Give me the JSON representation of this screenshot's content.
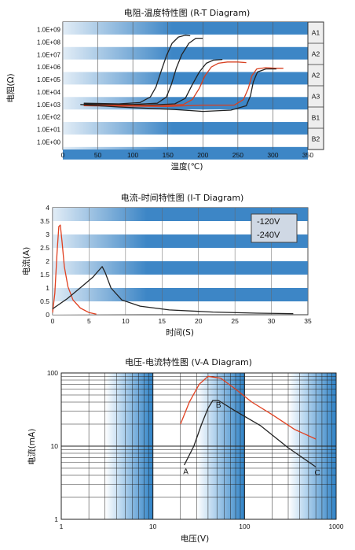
{
  "chart_data": [
    {
      "type": "line",
      "title": "电阻-温度特性图 (R-T Diagram)",
      "xlabel": "温度(℃)",
      "ylabel": "电阻(Ω)",
      "xlim": [
        0,
        350
      ],
      "x_ticks": [
        "0",
        "50",
        "100",
        "150",
        "200",
        "250",
        "300",
        "350"
      ],
      "y_ticks": [
        "1.0E+00",
        "1.0E+01",
        "1.0E+02",
        "1.0E+03",
        "1.0E+04",
        "1.0E+05",
        "1.0E+06",
        "1.0E+07",
        "1.0E+08",
        "1.0E+09"
      ],
      "y_log10_range": [
        0,
        9
      ],
      "side_labels": [
        "A1",
        "A2",
        "A2",
        "A3",
        "B1",
        "B2"
      ],
      "series": [
        {
          "color": "#222222",
          "points": [
            [
              30,
              3.1
            ],
            [
              80,
              3.05
            ],
            [
              110,
              3.15
            ],
            [
              125,
              3.6
            ],
            [
              133,
              4.4
            ],
            [
              140,
              5.6
            ],
            [
              148,
              6.9
            ],
            [
              156,
              7.9
            ],
            [
              165,
              8.4
            ],
            [
              175,
              8.55
            ],
            [
              182,
              8.5
            ]
          ]
        },
        {
          "color": "#222222",
          "points": [
            [
              30,
              3.05
            ],
            [
              100,
              3.0
            ],
            [
              135,
              3.1
            ],
            [
              148,
              3.6
            ],
            [
              155,
              4.6
            ],
            [
              162,
              5.9
            ],
            [
              170,
              7.0
            ],
            [
              180,
              7.9
            ],
            [
              190,
              8.3
            ],
            [
              200,
              8.3
            ]
          ]
        },
        {
          "color": "#222222",
          "points": [
            [
              30,
              3.0
            ],
            [
              120,
              2.95
            ],
            [
              160,
              3.05
            ],
            [
              175,
              3.5
            ],
            [
              185,
              4.6
            ],
            [
              195,
              5.6
            ],
            [
              205,
              6.3
            ],
            [
              215,
              6.55
            ],
            [
              228,
              6.6
            ]
          ]
        },
        {
          "color": "#d84020",
          "points": [
            [
              30,
              2.95
            ],
            [
              140,
              2.9
            ],
            [
              172,
              3.0
            ],
            [
              185,
              3.4
            ],
            [
              195,
              4.3
            ],
            [
              203,
              5.3
            ],
            [
              212,
              6.0
            ],
            [
              222,
              6.3
            ],
            [
              235,
              6.4
            ],
            [
              250,
              6.4
            ],
            [
              262,
              6.35
            ]
          ]
        },
        {
          "color": "#d84020",
          "points": [
            [
              30,
              2.9
            ],
            [
              150,
              2.85
            ],
            [
              200,
              2.95
            ],
            [
              215,
              2.95
            ],
            [
              245,
              2.95
            ],
            [
              258,
              3.4
            ],
            [
              265,
              4.3
            ],
            [
              270,
              5.3
            ],
            [
              277,
              5.85
            ],
            [
              290,
              5.95
            ],
            [
              305,
              5.9
            ],
            [
              315,
              5.9
            ]
          ]
        },
        {
          "color": "#222222",
          "points": [
            [
              25,
              3.0
            ],
            [
              80,
              2.8
            ],
            [
              160,
              2.6
            ],
            [
              200,
              2.45
            ],
            [
              240,
              2.55
            ],
            [
              262,
              2.9
            ],
            [
              268,
              3.7
            ],
            [
              272,
              4.8
            ],
            [
              278,
              5.6
            ],
            [
              290,
              5.85
            ],
            [
              305,
              5.85
            ]
          ]
        }
      ]
    },
    {
      "type": "line",
      "title": "电流-时间特性图 (I-T Diagram)",
      "xlabel": "时间(S)",
      "ylabel": "电流(A)",
      "xlim": [
        0,
        35
      ],
      "ylim": [
        0,
        4
      ],
      "x_ticks": [
        "0",
        "5",
        "10",
        "15",
        "20",
        "25",
        "30",
        "35"
      ],
      "y_ticks": [
        "0",
        "0.5",
        "1",
        "1.5",
        "2",
        "2.5",
        "3",
        "3.5",
        "4"
      ],
      "legend": [
        "-120V",
        "-240V"
      ],
      "series": [
        {
          "name": "-120V",
          "color": "#e04020",
          "points": [
            [
              0,
              0.08
            ],
            [
              0.3,
              0.8
            ],
            [
              0.6,
              2.3
            ],
            [
              0.85,
              3.3
            ],
            [
              1.05,
              3.35
            ],
            [
              1.3,
              2.7
            ],
            [
              1.6,
              1.8
            ],
            [
              2.1,
              1.05
            ],
            [
              2.8,
              0.55
            ],
            [
              3.8,
              0.25
            ],
            [
              5,
              0.08
            ],
            [
              6,
              0.02
            ]
          ]
        },
        {
          "name": "-240V",
          "color": "#222222",
          "points": [
            [
              0,
              0.22
            ],
            [
              2,
              0.6
            ],
            [
              4,
              1.05
            ],
            [
              5.5,
              1.4
            ],
            [
              6.8,
              1.8
            ],
            [
              7.2,
              1.58
            ],
            [
              8,
              1.0
            ],
            [
              9.5,
              0.55
            ],
            [
              12,
              0.32
            ],
            [
              16,
              0.18
            ],
            [
              22,
              0.1
            ],
            [
              28,
              0.06
            ],
            [
              33,
              0.04
            ]
          ]
        }
      ]
    },
    {
      "type": "line",
      "title": "电压-电流特性图 (V-A Diagram)",
      "xlabel": "电压(V)",
      "ylabel": "电流(mA)",
      "x_log10_range": [
        0,
        3
      ],
      "y_log10_range": [
        0,
        2
      ],
      "x_ticks": [
        "1",
        "10",
        "100",
        "1000"
      ],
      "y_ticks": [
        "1",
        "10",
        "100"
      ],
      "point_labels": [
        {
          "text": "A",
          "x": 22,
          "y": 4.6
        },
        {
          "text": "B",
          "x": 50,
          "y": 37
        },
        {
          "text": "C",
          "x": 600,
          "y": 4.4
        }
      ],
      "series": [
        {
          "color": "#e04020",
          "points": [
            [
              20,
              20
            ],
            [
              25,
              40
            ],
            [
              32,
              70
            ],
            [
              40,
              90
            ],
            [
              55,
              85
            ],
            [
              80,
              60
            ],
            [
              120,
              40
            ],
            [
              200,
              27
            ],
            [
              350,
              17
            ],
            [
              600,
              12.5
            ]
          ]
        },
        {
          "color": "#222222",
          "points": [
            [
              22,
              5.5
            ],
            [
              28,
              10
            ],
            [
              34,
              20
            ],
            [
              40,
              33
            ],
            [
              45,
              42
            ],
            [
              52,
              42
            ],
            [
              80,
              30
            ],
            [
              150,
              19
            ],
            [
              300,
              9.5
            ],
            [
              600,
              5.2
            ]
          ]
        }
      ]
    }
  ]
}
